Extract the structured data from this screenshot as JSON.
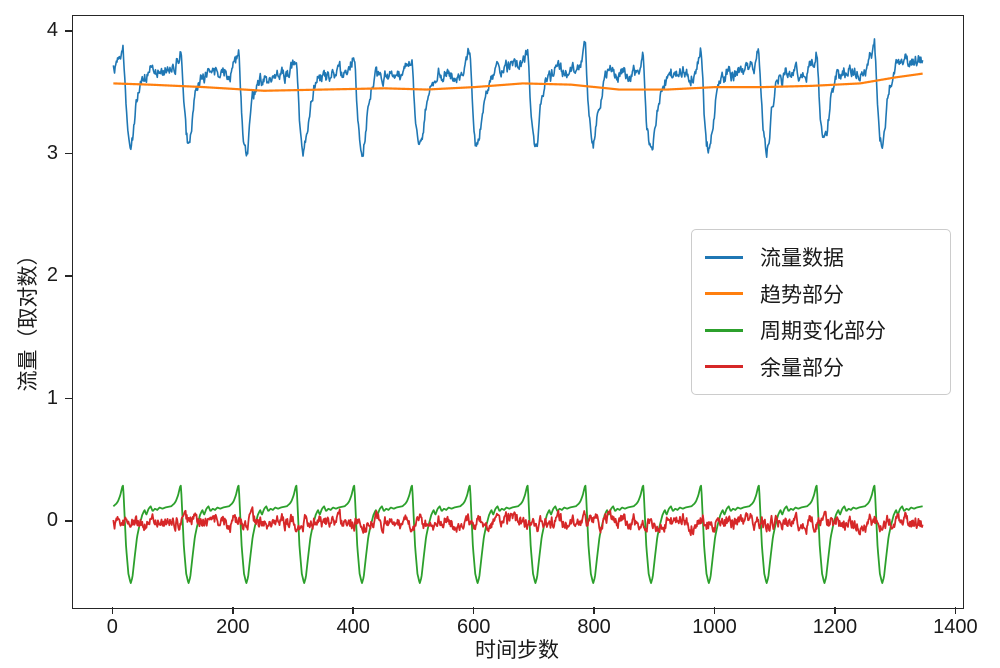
{
  "chart_data": {
    "type": "line",
    "title": "",
    "xlabel": "时间步数",
    "ylabel": "流量（取对数）",
    "xlim": [
      -67,
      1411
    ],
    "ylim": [
      -0.7,
      4.13
    ],
    "xticks": [
      0,
      200,
      400,
      600,
      800,
      1000,
      1200,
      1400
    ],
    "yticks": [
      0,
      1,
      2,
      3,
      4
    ],
    "grid": false,
    "background": "#ffffff",
    "axis_color": "#262626",
    "n_points": 1345,
    "period": 96,
    "legend": {
      "location": "center-right",
      "items": [
        "流量数据",
        "趋势部分",
        "周期变化部分",
        "余量部分"
      ]
    },
    "series": [
      {
        "name": "流量数据",
        "color": "#1f77b4",
        "kind": "composite",
        "composition": "trend+seasonal+residual",
        "approx_mean": 3.55,
        "approx_range": [
          3.0,
          3.88
        ],
        "linewidth": 1.6
      },
      {
        "name": "趋势部分",
        "color": "#ff7f0e",
        "kind": "knots",
        "knots": [
          [
            0,
            3.58
          ],
          [
            60,
            3.57
          ],
          [
            150,
            3.55
          ],
          [
            250,
            3.52
          ],
          [
            350,
            3.53
          ],
          [
            450,
            3.54
          ],
          [
            520,
            3.53
          ],
          [
            600,
            3.55
          ],
          [
            680,
            3.58
          ],
          [
            760,
            3.57
          ],
          [
            840,
            3.53
          ],
          [
            920,
            3.53
          ],
          [
            1000,
            3.55
          ],
          [
            1080,
            3.55
          ],
          [
            1160,
            3.56
          ],
          [
            1240,
            3.58
          ],
          [
            1300,
            3.63
          ],
          [
            1344,
            3.66
          ]
        ],
        "linewidth": 2.2
      },
      {
        "name": "周期变化部分",
        "color": "#2ca02c",
        "kind": "seasonal",
        "range": [
          -0.5,
          0.3
        ],
        "phase_knots": [
          [
            0.0,
            0.13
          ],
          [
            0.05,
            0.15
          ],
          [
            0.08,
            0.17
          ],
          [
            0.12,
            0.22
          ],
          [
            0.155,
            0.29
          ],
          [
            0.17,
            0.3
          ],
          [
            0.19,
            0.1
          ],
          [
            0.22,
            -0.2
          ],
          [
            0.26,
            -0.42
          ],
          [
            0.3,
            -0.5
          ],
          [
            0.33,
            -0.45
          ],
          [
            0.37,
            -0.28
          ],
          [
            0.41,
            -0.12
          ],
          [
            0.45,
            -0.03
          ],
          [
            0.5,
            0.06
          ],
          [
            0.54,
            0.1
          ],
          [
            0.57,
            0.06
          ],
          [
            0.61,
            0.11
          ],
          [
            0.645,
            0.13
          ],
          [
            0.68,
            0.09
          ],
          [
            0.72,
            0.11
          ],
          [
            0.76,
            0.1
          ],
          [
            0.8,
            0.12
          ],
          [
            0.85,
            0.11
          ],
          [
            0.9,
            0.12
          ],
          [
            0.95,
            0.125
          ],
          [
            1.0,
            0.13
          ]
        ],
        "linewidth": 1.8
      },
      {
        "name": "余量部分",
        "color": "#d62728",
        "kind": "ar_noise",
        "phi": 0.72,
        "innovation_half_range": 0.045,
        "seed": 1234567,
        "approx_range": [
          -0.15,
          0.15
        ],
        "linewidth": 1.8
      }
    ]
  }
}
